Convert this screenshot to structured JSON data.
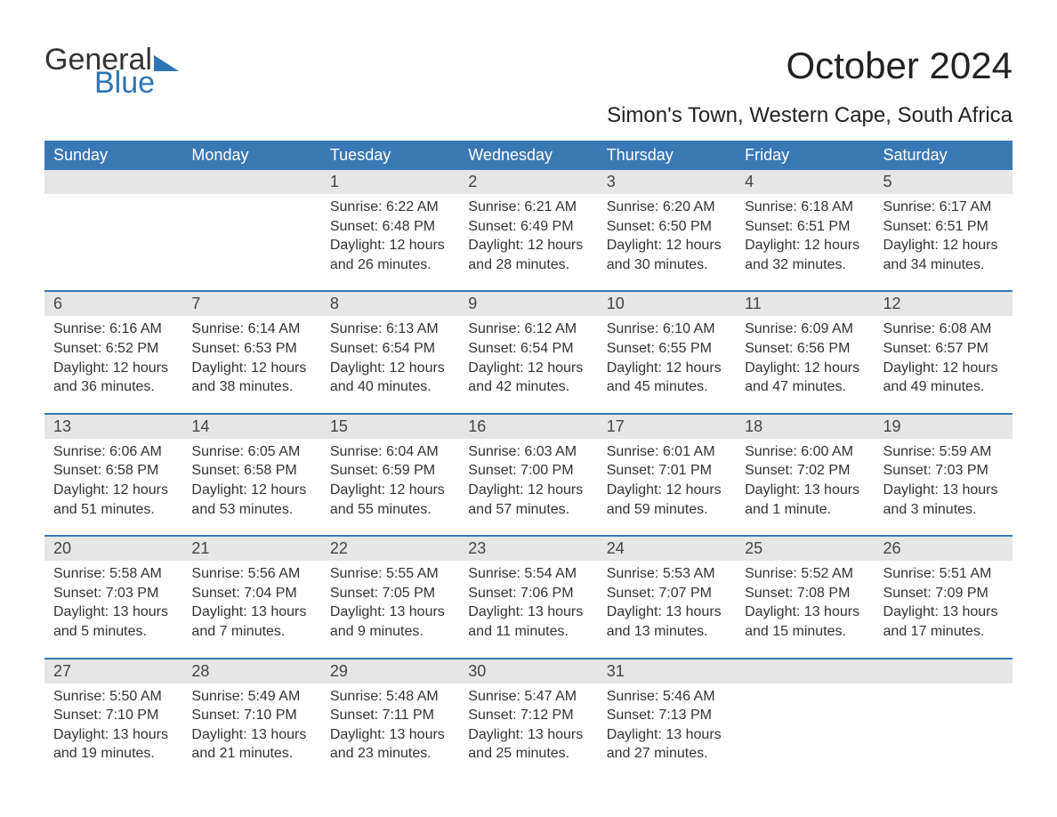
{
  "logo": {
    "word1": "General",
    "word2": "Blue"
  },
  "title": "October 2024",
  "location": "Simon's Town, Western Cape, South Africa",
  "colors": {
    "header_bg": "#3a78b5",
    "header_text": "#ffffff",
    "daynum_bg": "#e6e6e6",
    "border": "#3a78b5",
    "logo_blue": "#2e75b6",
    "body_text": "#333333",
    "background": "#ffffff"
  },
  "typography": {
    "title_fontsize": 42,
    "location_fontsize": 24,
    "header_fontsize": 18,
    "daynum_fontsize": 18,
    "content_fontsize": 16,
    "logo_fontsize": 34
  },
  "weekday_headers": [
    "Sunday",
    "Monday",
    "Tuesday",
    "Wednesday",
    "Thursday",
    "Friday",
    "Saturday"
  ],
  "weeks": [
    [
      {
        "blank": true
      },
      {
        "blank": true
      },
      {
        "day": "1",
        "sunrise": "Sunrise: 6:22 AM",
        "sunset": "Sunset: 6:48 PM",
        "daylight1": "Daylight: 12 hours",
        "daylight2": "and 26 minutes."
      },
      {
        "day": "2",
        "sunrise": "Sunrise: 6:21 AM",
        "sunset": "Sunset: 6:49 PM",
        "daylight1": "Daylight: 12 hours",
        "daylight2": "and 28 minutes."
      },
      {
        "day": "3",
        "sunrise": "Sunrise: 6:20 AM",
        "sunset": "Sunset: 6:50 PM",
        "daylight1": "Daylight: 12 hours",
        "daylight2": "and 30 minutes."
      },
      {
        "day": "4",
        "sunrise": "Sunrise: 6:18 AM",
        "sunset": "Sunset: 6:51 PM",
        "daylight1": "Daylight: 12 hours",
        "daylight2": "and 32 minutes."
      },
      {
        "day": "5",
        "sunrise": "Sunrise: 6:17 AM",
        "sunset": "Sunset: 6:51 PM",
        "daylight1": "Daylight: 12 hours",
        "daylight2": "and 34 minutes."
      }
    ],
    [
      {
        "day": "6",
        "sunrise": "Sunrise: 6:16 AM",
        "sunset": "Sunset: 6:52 PM",
        "daylight1": "Daylight: 12 hours",
        "daylight2": "and 36 minutes."
      },
      {
        "day": "7",
        "sunrise": "Sunrise: 6:14 AM",
        "sunset": "Sunset: 6:53 PM",
        "daylight1": "Daylight: 12 hours",
        "daylight2": "and 38 minutes."
      },
      {
        "day": "8",
        "sunrise": "Sunrise: 6:13 AM",
        "sunset": "Sunset: 6:54 PM",
        "daylight1": "Daylight: 12 hours",
        "daylight2": "and 40 minutes."
      },
      {
        "day": "9",
        "sunrise": "Sunrise: 6:12 AM",
        "sunset": "Sunset: 6:54 PM",
        "daylight1": "Daylight: 12 hours",
        "daylight2": "and 42 minutes."
      },
      {
        "day": "10",
        "sunrise": "Sunrise: 6:10 AM",
        "sunset": "Sunset: 6:55 PM",
        "daylight1": "Daylight: 12 hours",
        "daylight2": "and 45 minutes."
      },
      {
        "day": "11",
        "sunrise": "Sunrise: 6:09 AM",
        "sunset": "Sunset: 6:56 PM",
        "daylight1": "Daylight: 12 hours",
        "daylight2": "and 47 minutes."
      },
      {
        "day": "12",
        "sunrise": "Sunrise: 6:08 AM",
        "sunset": "Sunset: 6:57 PM",
        "daylight1": "Daylight: 12 hours",
        "daylight2": "and 49 minutes."
      }
    ],
    [
      {
        "day": "13",
        "sunrise": "Sunrise: 6:06 AM",
        "sunset": "Sunset: 6:58 PM",
        "daylight1": "Daylight: 12 hours",
        "daylight2": "and 51 minutes."
      },
      {
        "day": "14",
        "sunrise": "Sunrise: 6:05 AM",
        "sunset": "Sunset: 6:58 PM",
        "daylight1": "Daylight: 12 hours",
        "daylight2": "and 53 minutes."
      },
      {
        "day": "15",
        "sunrise": "Sunrise: 6:04 AM",
        "sunset": "Sunset: 6:59 PM",
        "daylight1": "Daylight: 12 hours",
        "daylight2": "and 55 minutes."
      },
      {
        "day": "16",
        "sunrise": "Sunrise: 6:03 AM",
        "sunset": "Sunset: 7:00 PM",
        "daylight1": "Daylight: 12 hours",
        "daylight2": "and 57 minutes."
      },
      {
        "day": "17",
        "sunrise": "Sunrise: 6:01 AM",
        "sunset": "Sunset: 7:01 PM",
        "daylight1": "Daylight: 12 hours",
        "daylight2": "and 59 minutes."
      },
      {
        "day": "18",
        "sunrise": "Sunrise: 6:00 AM",
        "sunset": "Sunset: 7:02 PM",
        "daylight1": "Daylight: 13 hours",
        "daylight2": "and 1 minute."
      },
      {
        "day": "19",
        "sunrise": "Sunrise: 5:59 AM",
        "sunset": "Sunset: 7:03 PM",
        "daylight1": "Daylight: 13 hours",
        "daylight2": "and 3 minutes."
      }
    ],
    [
      {
        "day": "20",
        "sunrise": "Sunrise: 5:58 AM",
        "sunset": "Sunset: 7:03 PM",
        "daylight1": "Daylight: 13 hours",
        "daylight2": "and 5 minutes."
      },
      {
        "day": "21",
        "sunrise": "Sunrise: 5:56 AM",
        "sunset": "Sunset: 7:04 PM",
        "daylight1": "Daylight: 13 hours",
        "daylight2": "and 7 minutes."
      },
      {
        "day": "22",
        "sunrise": "Sunrise: 5:55 AM",
        "sunset": "Sunset: 7:05 PM",
        "daylight1": "Daylight: 13 hours",
        "daylight2": "and 9 minutes."
      },
      {
        "day": "23",
        "sunrise": "Sunrise: 5:54 AM",
        "sunset": "Sunset: 7:06 PM",
        "daylight1": "Daylight: 13 hours",
        "daylight2": "and 11 minutes."
      },
      {
        "day": "24",
        "sunrise": "Sunrise: 5:53 AM",
        "sunset": "Sunset: 7:07 PM",
        "daylight1": "Daylight: 13 hours",
        "daylight2": "and 13 minutes."
      },
      {
        "day": "25",
        "sunrise": "Sunrise: 5:52 AM",
        "sunset": "Sunset: 7:08 PM",
        "daylight1": "Daylight: 13 hours",
        "daylight2": "and 15 minutes."
      },
      {
        "day": "26",
        "sunrise": "Sunrise: 5:51 AM",
        "sunset": "Sunset: 7:09 PM",
        "daylight1": "Daylight: 13 hours",
        "daylight2": "and 17 minutes."
      }
    ],
    [
      {
        "day": "27",
        "sunrise": "Sunrise: 5:50 AM",
        "sunset": "Sunset: 7:10 PM",
        "daylight1": "Daylight: 13 hours",
        "daylight2": "and 19 minutes."
      },
      {
        "day": "28",
        "sunrise": "Sunrise: 5:49 AM",
        "sunset": "Sunset: 7:10 PM",
        "daylight1": "Daylight: 13 hours",
        "daylight2": "and 21 minutes."
      },
      {
        "day": "29",
        "sunrise": "Sunrise: 5:48 AM",
        "sunset": "Sunset: 7:11 PM",
        "daylight1": "Daylight: 13 hours",
        "daylight2": "and 23 minutes."
      },
      {
        "day": "30",
        "sunrise": "Sunrise: 5:47 AM",
        "sunset": "Sunset: 7:12 PM",
        "daylight1": "Daylight: 13 hours",
        "daylight2": "and 25 minutes."
      },
      {
        "day": "31",
        "sunrise": "Sunrise: 5:46 AM",
        "sunset": "Sunset: 7:13 PM",
        "daylight1": "Daylight: 13 hours",
        "daylight2": "and 27 minutes."
      },
      {
        "blank": true
      },
      {
        "blank": true
      }
    ]
  ]
}
